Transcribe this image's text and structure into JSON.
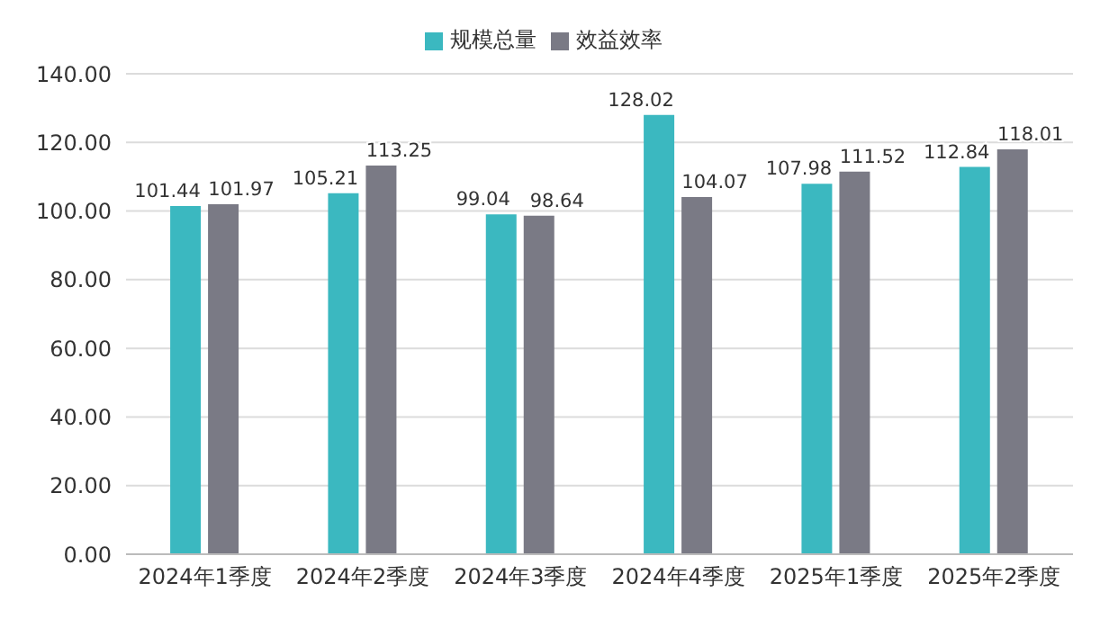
{
  "chart_data": {
    "type": "bar",
    "categories": [
      "2024年1季度",
      "2024年2季度",
      "2024年3季度",
      "2024年4季度",
      "2025年1季度",
      "2025年2季度"
    ],
    "series": [
      {
        "name": "规模总量",
        "color": "#3bb8c0",
        "values": [
          101.44,
          105.21,
          99.04,
          128.02,
          107.98,
          112.84
        ]
      },
      {
        "name": "效益效率",
        "color": "#7a7a85",
        "values": [
          101.97,
          113.25,
          98.64,
          104.07,
          111.52,
          118.01
        ]
      }
    ],
    "ylim": [
      0,
      140
    ],
    "yticks": [
      {
        "value": 0,
        "label": "0.00"
      },
      {
        "value": 20,
        "label": "20.00"
      },
      {
        "value": 40,
        "label": "40.00"
      },
      {
        "value": 60,
        "label": "60.00"
      },
      {
        "value": 80,
        "label": "80.00"
      },
      {
        "value": 100,
        "label": "100.00"
      },
      {
        "value": 120,
        "label": "120.00"
      },
      {
        "value": 140,
        "label": "140.00"
      }
    ],
    "grid": "y",
    "legend": "top",
    "data_labels": true
  }
}
